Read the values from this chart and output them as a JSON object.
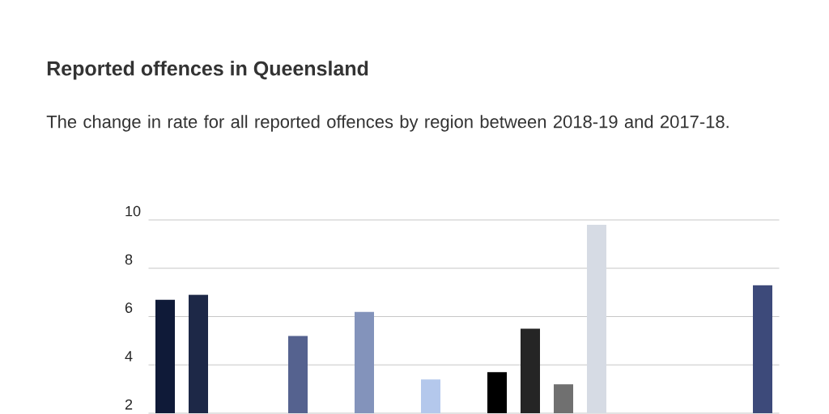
{
  "chart_data": {
    "type": "bar",
    "title": "Reported offences in Queensland",
    "subtitle": "The change in rate for all reported offences by region between 2018-19 and 2017-18.",
    "categories": [
      null,
      null,
      null,
      null,
      null,
      null,
      null,
      null,
      null,
      null,
      null,
      null,
      null,
      null,
      null,
      null,
      null,
      null,
      null
    ],
    "values": [
      6.7,
      6.9,
      null,
      null,
      5.2,
      null,
      6.2,
      null,
      3.4,
      null,
      3.7,
      5.5,
      3.2,
      9.8,
      null,
      null,
      null,
      null,
      7.3
    ],
    "colors": [
      "#0f1a38",
      "#1d2847",
      null,
      null,
      "#55628f",
      null,
      "#8393bb",
      null,
      "#b4c8ec",
      null,
      "#000000",
      "#252525",
      "#707070",
      "#d6dbe4",
      null,
      null,
      null,
      null,
      "#3d4a7a"
    ],
    "ylim": [
      2,
      10
    ],
    "yticks": [
      2,
      4,
      6,
      8,
      10
    ],
    "grid": "y",
    "tick_labels": "y"
  }
}
